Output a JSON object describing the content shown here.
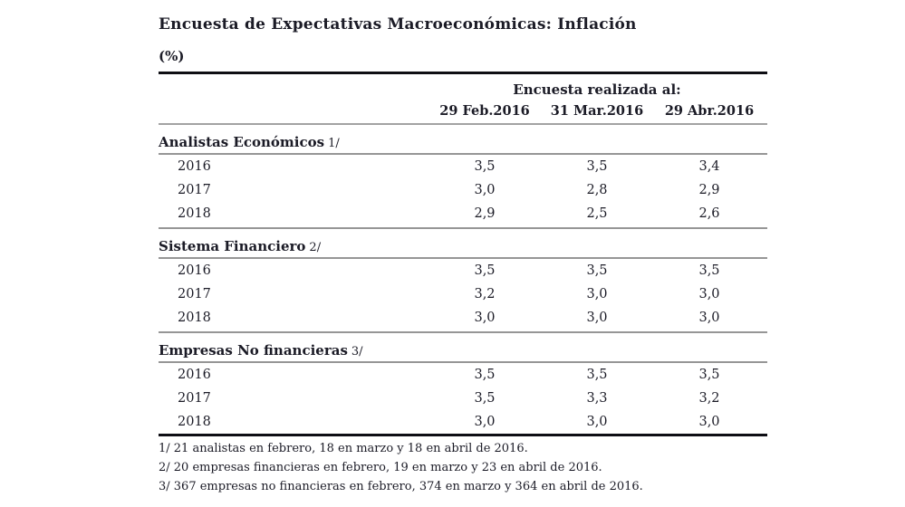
{
  "title": "Encuesta de Expectativas Macroeconómicas: Inflación",
  "subtitle": "(%)",
  "table": {
    "header_group": "Encuesta realizada al:",
    "columns": [
      "29 Feb.2016",
      "31 Mar.2016",
      "29 Abr.2016"
    ],
    "sections": [
      {
        "label": "Analistas Económicos",
        "footnote_marker": "1/",
        "rows": [
          {
            "year": "2016",
            "values": [
              "3,5",
              "3,5",
              "3,4"
            ]
          },
          {
            "year": "2017",
            "values": [
              "3,0",
              "2,8",
              "2,9"
            ]
          },
          {
            "year": "2018",
            "values": [
              "2,9",
              "2,5",
              "2,6"
            ]
          }
        ]
      },
      {
        "label": "Sistema Financiero",
        "footnote_marker": "2/",
        "rows": [
          {
            "year": "2016",
            "values": [
              "3,5",
              "3,5",
              "3,5"
            ]
          },
          {
            "year": "2017",
            "values": [
              "3,2",
              "3,0",
              "3,0"
            ]
          },
          {
            "year": "2018",
            "values": [
              "3,0",
              "3,0",
              "3,0"
            ]
          }
        ]
      },
      {
        "label": "Empresas No financieras",
        "footnote_marker": "3/",
        "rows": [
          {
            "year": "2016",
            "values": [
              "3,5",
              "3,5",
              "3,5"
            ]
          },
          {
            "year": "2017",
            "values": [
              "3,5",
              "3,3",
              "3,2"
            ]
          },
          {
            "year": "2018",
            "values": [
              "3,0",
              "3,0",
              "3,0"
            ]
          }
        ]
      }
    ]
  },
  "footnotes": [
    "1/ 21 analistas en febrero, 18 en marzo y 18 en abril de 2016.",
    "2/ 20 empresas financieras en febrero, 19 en marzo y 23 en abril de 2016.",
    "3/ 367 empresas no financieras en febrero, 374 en marzo y 364 en abril de 2016."
  ],
  "colors": {
    "text": "#1b1b26",
    "rule_strong": "#0e0e14",
    "rule_light": "#a2a2a2"
  }
}
